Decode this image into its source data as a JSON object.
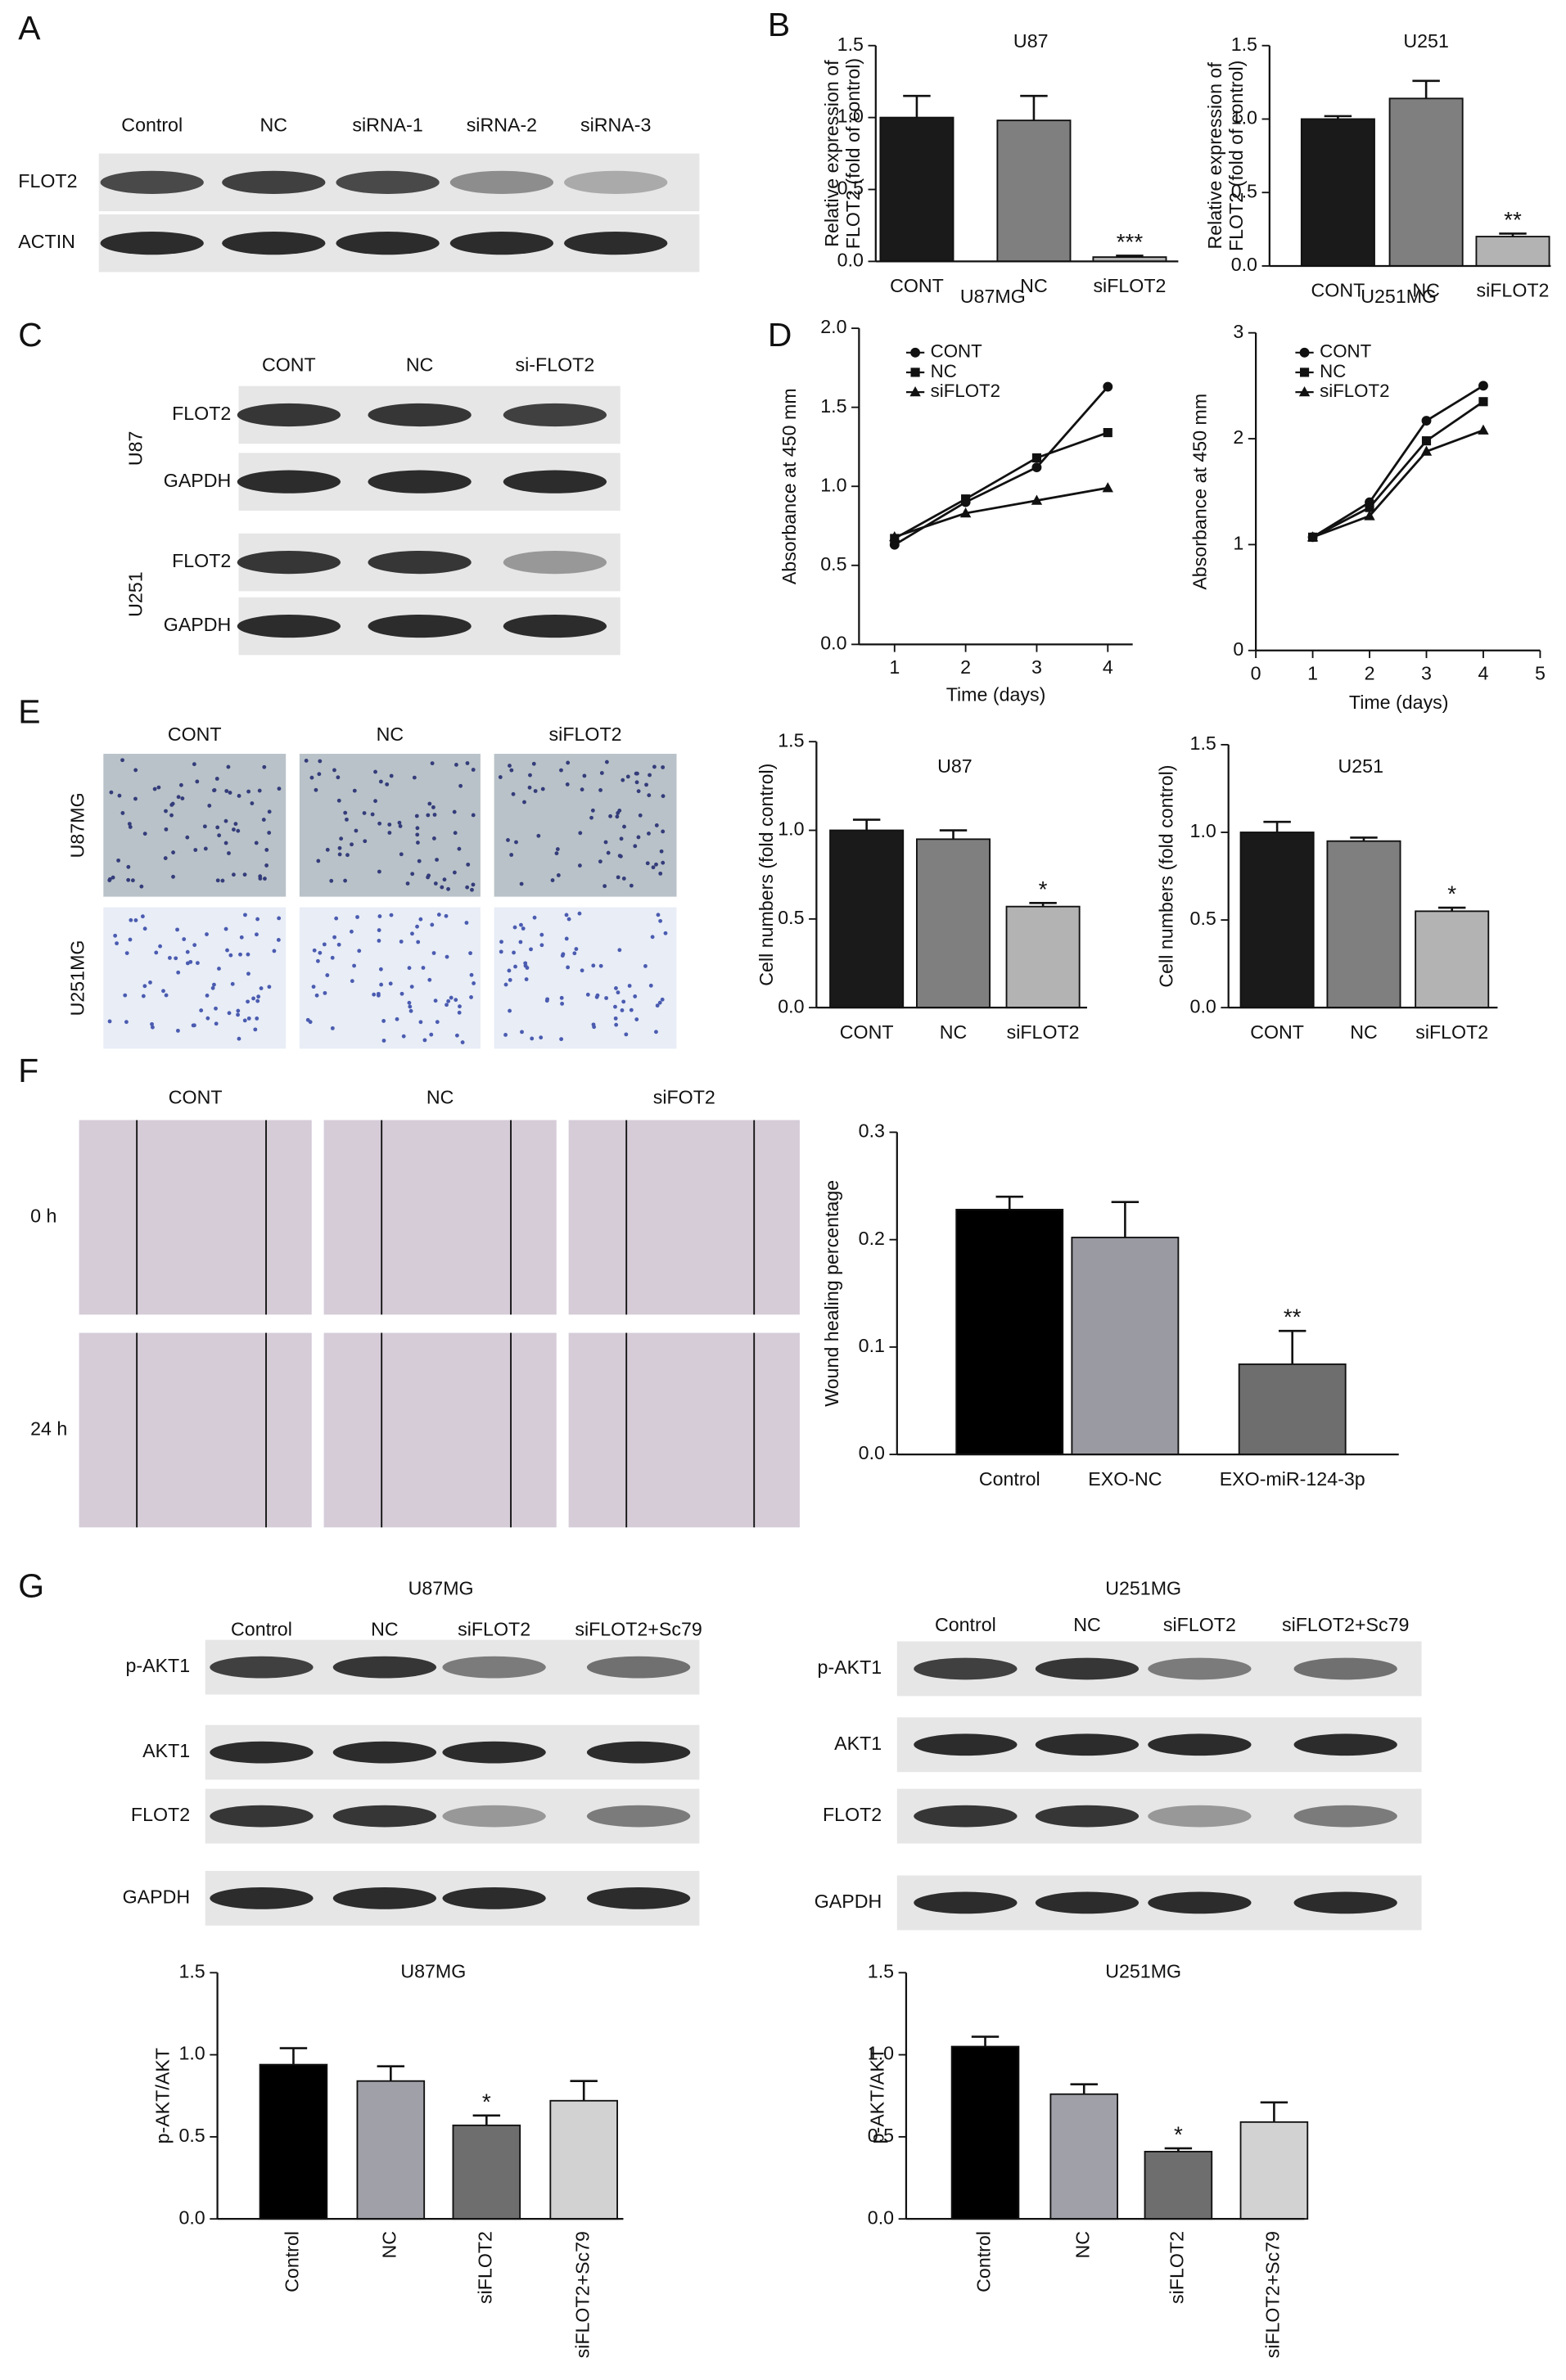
{
  "panels": [
    "A",
    "B",
    "C",
    "D",
    "E",
    "F",
    "G"
  ],
  "blot_a": {
    "lanes": [
      "Control",
      "NC",
      "siRNA-1",
      "siRNA-2",
      "siRNA-3"
    ],
    "rows": [
      "FLOT2",
      "ACTIN"
    ]
  },
  "blot_c": {
    "lanes": [
      "CONT",
      "NC",
      "si-FLOT2"
    ],
    "groups": [
      {
        "name": "U87",
        "rows": [
          "FLOT2",
          "GAPDH"
        ]
      },
      {
        "name": "U251",
        "rows": [
          "FLOT2",
          "GAPDH"
        ]
      }
    ]
  },
  "micrographs_e": {
    "columns": [
      "CONT",
      "NC",
      "siFLOT2"
    ],
    "rows": [
      "U87MG",
      "U251MG"
    ]
  },
  "micrographs_f": {
    "columns": [
      "CONT",
      "NC",
      "siFOT2"
    ],
    "rows": [
      "0 h",
      "24 h"
    ]
  },
  "blot_g": [
    {
      "title": "U87MG",
      "lanes": [
        "Control",
        "NC",
        "siFLOT2",
        "siFLOT2+Sc79"
      ],
      "rows": [
        "p-AKT1",
        "AKT1",
        "FLOT2",
        "GAPDH"
      ]
    },
    {
      "title": "U251MG",
      "lanes": [
        "Control",
        "NC",
        "siFLOT2",
        "siFLOT2+Sc79"
      ],
      "rows": [
        "p-AKT1",
        "AKT1",
        "FLOT2",
        "GAPDH"
      ]
    }
  ],
  "chart_data": [
    {
      "type": "bar",
      "title": "U87",
      "ylabel": [
        "Relative expression of",
        "FLOT2 (fold of control)"
      ],
      "categories": [
        "CONT",
        "NC",
        "siFLOT2"
      ],
      "values": [
        1.0,
        0.98,
        0.03
      ],
      "errors": [
        0.15,
        0.17,
        0.01
      ],
      "colors": [
        "#1a1a1a",
        "#7f7f7f",
        "#b3b3b3"
      ],
      "annotations": [
        null,
        null,
        "***"
      ],
      "ylim": [
        0,
        1.5
      ],
      "yticks": [
        {
          "value": 0,
          "label": "0.0"
        },
        0.5,
        {
          "value": 1,
          "label": "1.0"
        },
        1.5
      ]
    },
    {
      "type": "bar",
      "title": "U251",
      "ylabel": [
        "Relative expression of",
        "FLOT2 (fold of control)"
      ],
      "categories": [
        "CONT",
        "NC",
        "siFLOT2"
      ],
      "values": [
        1.0,
        1.14,
        0.2
      ],
      "errors": [
        0.02,
        0.12,
        0.02
      ],
      "colors": [
        "#1a1a1a",
        "#7f7f7f",
        "#b3b3b3"
      ],
      "annotations": [
        null,
        null,
        "**"
      ],
      "ylim": [
        0,
        1.5
      ],
      "yticks": [
        {
          "value": 0,
          "label": "0.0"
        },
        0.5,
        {
          "value": 1,
          "label": "1.0"
        },
        1.5
      ]
    },
    {
      "type": "line",
      "title": "U87MG",
      "xlabel": "Time (days)",
      "ylabel": "Absorbance at 450 mm",
      "x": [
        1,
        2,
        3,
        4
      ],
      "xlim": [
        0.5,
        4.35
      ],
      "xticks": [
        1,
        2,
        3,
        4
      ],
      "ylim": [
        0,
        2
      ],
      "yticks": [
        {
          "value": 0,
          "label": "0.0"
        },
        0.5,
        {
          "value": 1,
          "label": "1.0"
        },
        1.5,
        {
          "value": 2,
          "label": "2.0"
        }
      ],
      "legend": "upper left",
      "series": [
        {
          "name": "CONT",
          "color": "#111111",
          "marker": "circle",
          "values": [
            0.63,
            0.9,
            1.12,
            1.63
          ]
        },
        {
          "name": "NC",
          "color": "#111111",
          "marker": "square",
          "values": [
            0.67,
            0.92,
            1.18,
            1.34
          ]
        },
        {
          "name": "siFLOT2",
          "color": "#111111",
          "marker": "triangle",
          "values": [
            0.68,
            0.83,
            0.91,
            0.99
          ]
        }
      ]
    },
    {
      "type": "line",
      "title": "U251MG",
      "xlabel": "Time (days)",
      "ylabel": "Absorbance at 450 mm",
      "x": [
        1,
        2,
        3,
        4
      ],
      "xlim": [
        0,
        5
      ],
      "xticks": [
        0,
        1,
        2,
        3,
        4,
        5
      ],
      "ylim": [
        0,
        3
      ],
      "yticks": [
        0,
        1,
        2,
        3
      ],
      "legend": "upper left",
      "series": [
        {
          "name": "CONT",
          "color": "#111111",
          "marker": "circle",
          "values": [
            1.07,
            1.4,
            2.17,
            2.5
          ]
        },
        {
          "name": "NC",
          "color": "#111111",
          "marker": "square",
          "values": [
            1.07,
            1.35,
            1.98,
            2.35
          ]
        },
        {
          "name": "siFLOT2",
          "color": "#111111",
          "marker": "triangle",
          "values": [
            1.07,
            1.27,
            1.88,
            2.08
          ]
        }
      ]
    },
    {
      "type": "bar",
      "title": "U87",
      "ylabel": "Cell numbers (fold control)",
      "categories": [
        "CONT",
        "NC",
        "siFLOT2"
      ],
      "values": [
        1.0,
        0.95,
        0.57
      ],
      "errors": [
        0.06,
        0.05,
        0.02
      ],
      "colors": [
        "#1a1a1a",
        "#7f7f7f",
        "#b3b3b3"
      ],
      "annotations": [
        null,
        null,
        "*"
      ],
      "ylim": [
        0,
        1.5
      ],
      "yticks": [
        {
          "value": 0,
          "label": "0.0"
        },
        0.5,
        {
          "value": 1,
          "label": "1.0"
        },
        1.5
      ]
    },
    {
      "type": "bar",
      "title": "U251",
      "ylabel": "Cell numbers (fold control)",
      "categories": [
        "CONT",
        "NC",
        "siFLOT2"
      ],
      "values": [
        1.0,
        0.95,
        0.55
      ],
      "errors": [
        0.06,
        0.02,
        0.02
      ],
      "colors": [
        "#1a1a1a",
        "#7f7f7f",
        "#b3b3b3"
      ],
      "annotations": [
        null,
        null,
        "*"
      ],
      "ylim": [
        0,
        1.5
      ],
      "yticks": [
        {
          "value": 0,
          "label": "0.0"
        },
        0.5,
        {
          "value": 1,
          "label": "1.0"
        },
        1.5
      ]
    },
    {
      "type": "bar",
      "ylabel": "Wound healing percentage",
      "categories": [
        "Control",
        "EXO-NC",
        "EXO-miR-124-3p"
      ],
      "values": [
        0.228,
        0.202,
        0.084
      ],
      "errors": [
        0.012,
        0.033,
        0.031
      ],
      "colors": [
        "#000000",
        "#9a9aa2",
        "#6e6e6e"
      ],
      "annotations": [
        null,
        null,
        "**"
      ],
      "ylim": [
        0,
        0.3
      ],
      "yticks": [
        {
          "value": 0,
          "label": "0.0"
        },
        0.1,
        0.2,
        0.3
      ]
    },
    {
      "type": "bar",
      "title": "U87MG",
      "ylabel": "p-AKT/AKT",
      "categories": [
        "Control",
        "NC",
        "siFLOT2",
        "siFLOT2+Sc79"
      ],
      "values": [
        0.94,
        0.84,
        0.57,
        0.72
      ],
      "errors": [
        0.1,
        0.09,
        0.06,
        0.12
      ],
      "colors": [
        "#000000",
        "#a0a0a8",
        "#6e6e6e",
        "#d2d2d2"
      ],
      "annotations": [
        null,
        null,
        "*",
        null
      ],
      "ylim": [
        0,
        1.5
      ],
      "yticks": [
        {
          "value": 0,
          "label": "0.0"
        },
        0.5,
        {
          "value": 1,
          "label": "1.0"
        },
        1.5
      ]
    },
    {
      "type": "bar",
      "title": "U251MG",
      "ylabel": "p-AKT/AKT",
      "categories": [
        "Control",
        "NC",
        "siFLOT2",
        "siFLOT2+Sc79"
      ],
      "values": [
        1.05,
        0.76,
        0.41,
        0.59
      ],
      "errors": [
        0.06,
        0.06,
        0.02,
        0.12
      ],
      "colors": [
        "#000000",
        "#a0a0a8",
        "#6e6e6e",
        "#d2d2d2"
      ],
      "annotations": [
        null,
        null,
        "*",
        null
      ],
      "ylim": [
        0,
        1.5
      ],
      "yticks": [
        {
          "value": 0,
          "label": "0.0"
        },
        0.5,
        {
          "value": 1,
          "label": "1.0"
        },
        1.5
      ]
    }
  ]
}
